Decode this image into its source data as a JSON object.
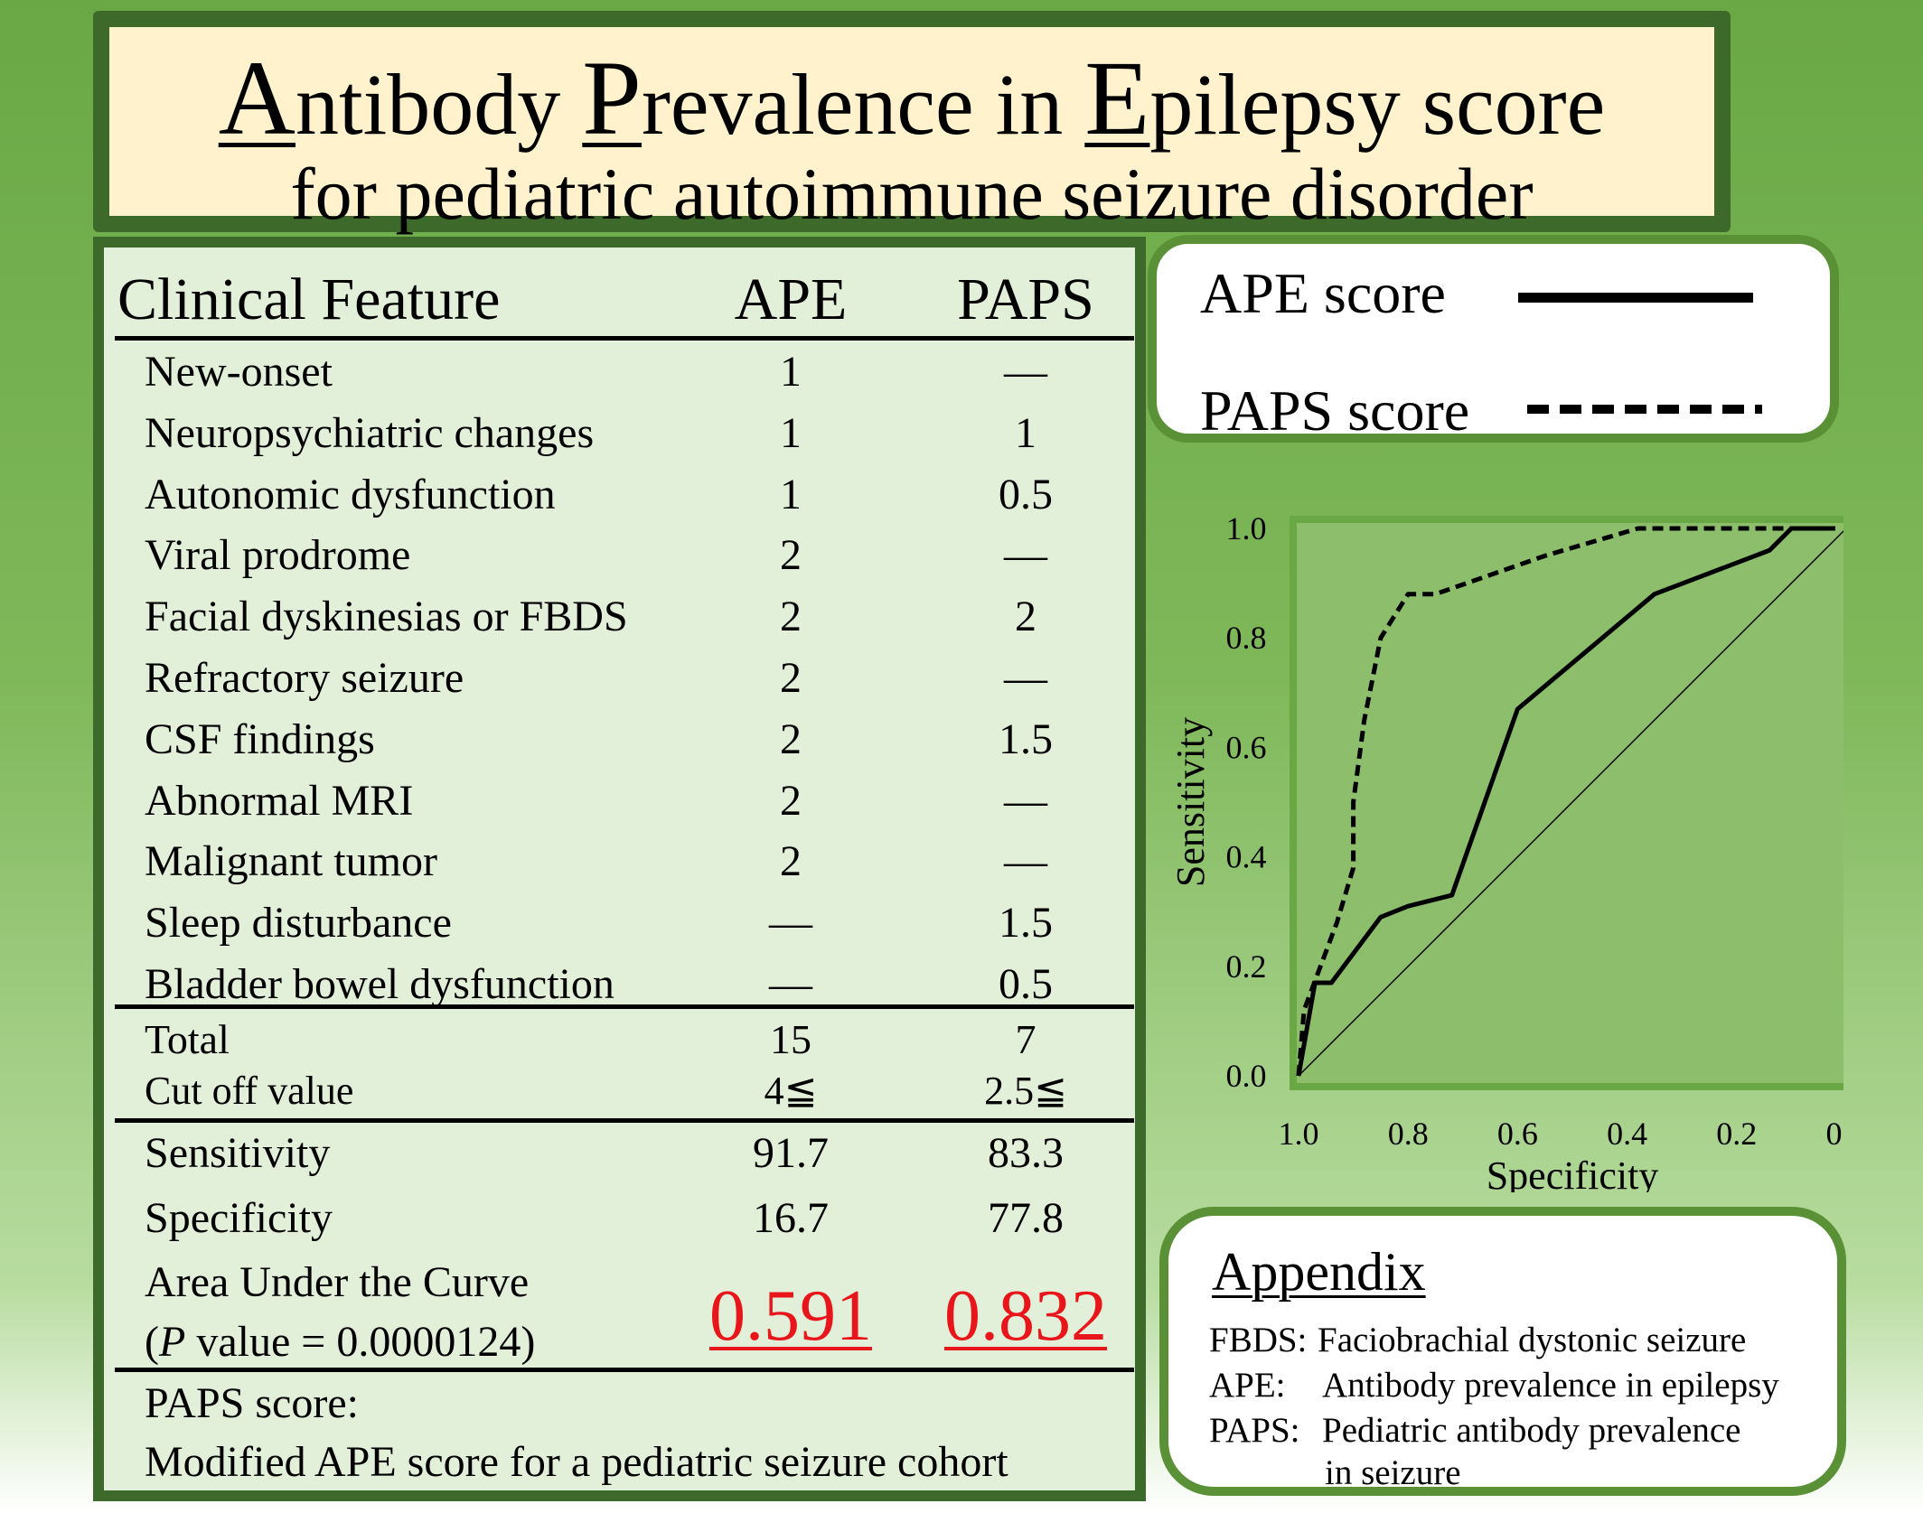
{
  "title": {
    "line1_parts": [
      {
        "text": "A",
        "big": true
      },
      {
        "text": "ntibody ",
        "big": false
      },
      {
        "text": "P",
        "big": true
      },
      {
        "text": "revalence in ",
        "big": false
      },
      {
        "text": "E",
        "big": true
      },
      {
        "text": "pilepsy score",
        "big": false
      }
    ],
    "line2": "for pediatric autoimmune seizure disorder"
  },
  "table": {
    "headers": [
      "Clinical Feature",
      "APE",
      "PAPS"
    ],
    "rows": [
      {
        "feature": "New-onset",
        "ape": "1",
        "paps": "—"
      },
      {
        "feature": "Neuropsychiatric changes",
        "ape": "1",
        "paps": "1"
      },
      {
        "feature": "Autonomic dysfunction",
        "ape": "1",
        "paps": "0.5"
      },
      {
        "feature": "Viral prodrome",
        "ape": "2",
        "paps": "—"
      },
      {
        "feature": "Facial dyskinesias or FBDS",
        "ape": "2",
        "paps": "2"
      },
      {
        "feature": "Refractory seizure",
        "ape": "2",
        "paps": "—"
      },
      {
        "feature": "CSF findings",
        "ape": "2",
        "paps": "1.5"
      },
      {
        "feature": "Abnormal MRI",
        "ape": "2",
        "paps": "—"
      },
      {
        "feature": "Malignant tumor",
        "ape": "2",
        "paps": "—"
      },
      {
        "feature": "Sleep disturbance",
        "ape": "—",
        "paps": "1.5"
      },
      {
        "feature": "Bladder bowel dysfunction",
        "ape": "—",
        "paps": "0.5"
      }
    ],
    "total": {
      "label": "Total",
      "ape": "15",
      "paps": "7"
    },
    "cutoff": {
      "label": "Cut off value",
      "ape": "4≦",
      "paps": "2.5≦"
    },
    "sensitivity": {
      "label": "Sensitivity",
      "ape": "91.7",
      "paps": "83.3"
    },
    "specificity": {
      "label": "Specificity",
      "ape": "16.7",
      "paps": "77.8"
    },
    "auc": {
      "label": "Area Under the Curve",
      "p_open": "(",
      "p_italic": "P",
      "p_rest": " value = 0.0000124)",
      "ape": "0.591",
      "paps": "0.832",
      "highlight_color": "#e8161b"
    },
    "note": {
      "line1": "PAPS score:",
      "line2": "Modified APE score for a pediatric seizure cohort"
    }
  },
  "legend": {
    "ape_label": "APE score",
    "paps_label": "PAPS score"
  },
  "appendix": {
    "title": "Appendix",
    "entries": [
      {
        "abbr": "FBDS:",
        "desc": "Faciobrachial dystonic seizure"
      },
      {
        "abbr": "APE:",
        "desc": "Antibody prevalence in epilepsy"
      },
      {
        "abbr": "PAPS:",
        "desc": "Pediatric antibody prevalence"
      },
      {
        "abbr": "",
        "desc": "in seizure"
      }
    ]
  },
  "colors": {
    "frame": "#3d6a2b",
    "plot_bg": "#8cbe6c",
    "plot_border": "#6aa845"
  },
  "chart_data": {
    "type": "line",
    "title": "",
    "xlabel": "Specificity",
    "ylabel": "Sensitivity",
    "xlim": [
      1.0,
      0.0
    ],
    "ylim": [
      0.0,
      1.0
    ],
    "x_ticks": [
      "1.0",
      "0.8",
      "0.6",
      "0.4",
      "0.2",
      "0.0"
    ],
    "y_ticks": [
      "0.0",
      "0.2",
      "0.4",
      "0.6",
      "0.8",
      "1.0"
    ],
    "diagonal_reference": true,
    "series": [
      {
        "name": "APE score",
        "style": "solid",
        "x": [
          1.0,
          0.97,
          0.94,
          0.85,
          0.8,
          0.72,
          0.6,
          0.35,
          0.14,
          0.1,
          0.02
        ],
        "y": [
          0.0,
          0.17,
          0.17,
          0.29,
          0.31,
          0.33,
          0.67,
          0.88,
          0.96,
          1.0,
          1.0
        ]
      },
      {
        "name": "PAPS score",
        "style": "dashed",
        "x": [
          1.0,
          0.99,
          0.96,
          0.93,
          0.9,
          0.9,
          0.88,
          0.85,
          0.8,
          0.75,
          0.55,
          0.38,
          0.2,
          0.02
        ],
        "y": [
          0.0,
          0.12,
          0.2,
          0.28,
          0.38,
          0.5,
          0.65,
          0.8,
          0.88,
          0.88,
          0.95,
          1.0,
          1.0,
          1.0
        ]
      }
    ]
  }
}
